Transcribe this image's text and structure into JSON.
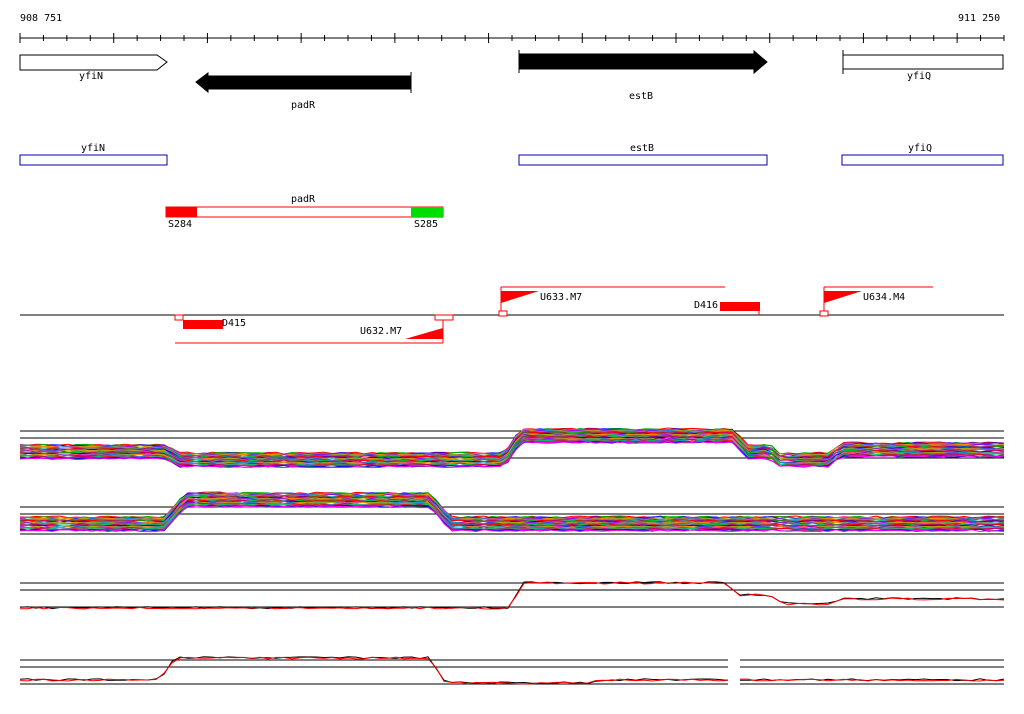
{
  "coordinates": {
    "start": "908 751",
    "end": "911 250"
  },
  "genes_arrows": [
    {
      "name": "yfiN",
      "strand": "+",
      "style": "outline"
    },
    {
      "name": "padR",
      "strand": "-",
      "style": "filled"
    },
    {
      "name": "estB",
      "strand": "+",
      "style": "filled"
    },
    {
      "name": "yfiQ",
      "strand": "+",
      "style": "outline"
    }
  ],
  "gene_boxes": [
    "yfiN",
    "estB",
    "yfiQ"
  ],
  "operon": {
    "name": "padR",
    "start_label": "S284",
    "end_label": "S285"
  },
  "features": {
    "above": [
      "U633.M7",
      "D416",
      "U634.M4"
    ],
    "below": [
      "D415",
      "U632.M7"
    ]
  },
  "colors": {
    "arrow_fill": "#000000",
    "gene_box": "#0000aa",
    "feature": "#ff0000",
    "start": "#ff0000",
    "end": "#00dd00"
  }
}
